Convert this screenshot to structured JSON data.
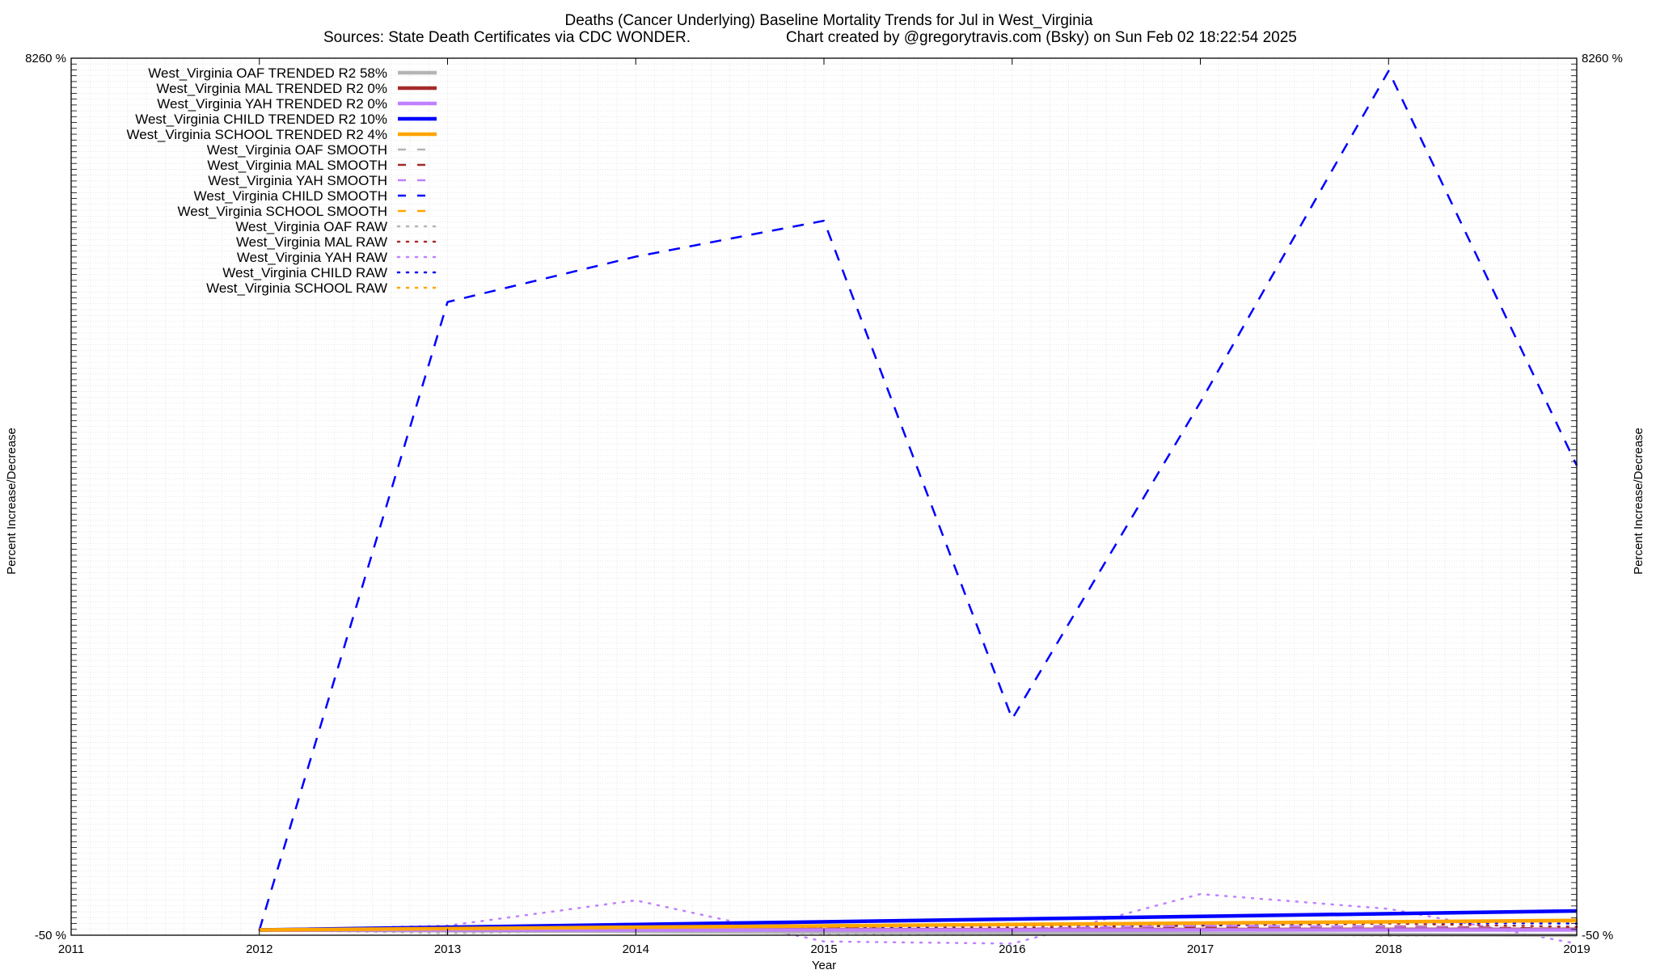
{
  "chart_data": {
    "type": "line",
    "title": "Deaths (Cancer Underlying)  Baseline Mortality Trends for Jul in West_Virginia",
    "subtitle_left": "Sources: State Death Certificates via CDC WONDER.",
    "subtitle_right": "Chart created by @gregorytravis.com (Bsky) on Sun Feb 02 18:22:54 2025",
    "xlabel": "Year",
    "ylabel": "Percent Increase/Decrease",
    "xlim": [
      2011,
      2019
    ],
    "ylim": [
      -50,
      8260
    ],
    "x_ticks": [
      2011,
      2012,
      2013,
      2014,
      2015,
      2016,
      2017,
      2018,
      2019
    ],
    "x_tick_labels": [
      "2011",
      "2012",
      "2013",
      "2014",
      "2015",
      "2016",
      "2017",
      "2018",
      "2019"
    ],
    "y_tick_labels_left": [
      "8260 %",
      "-50 %"
    ],
    "y_tick_labels_right": [
      "8260 %",
      "-50 %"
    ],
    "grid": true,
    "legend_position": "top-left",
    "series": [
      {
        "name": "West_Virginia OAF TRENDED R2  58%",
        "style": "trend",
        "color": "#b4b4b4",
        "x": [
          2012,
          2019
        ],
        "y": [
          0,
          -50
        ]
      },
      {
        "name": "West_Virginia MAL TRENDED R2   0%",
        "style": "trend",
        "color": "#a52a2a",
        "x": [
          2012,
          2019
        ],
        "y": [
          0,
          5
        ]
      },
      {
        "name": "West_Virginia YAH TRENDED R2   0%",
        "style": "trend",
        "color": "#c080ff",
        "x": [
          2012,
          2019
        ],
        "y": [
          0,
          0
        ]
      },
      {
        "name": "West_Virginia CHILD TRENDED R2  10%",
        "style": "trend",
        "color": "#0000ff",
        "x": [
          2012,
          2019
        ],
        "y": [
          0,
          180
        ]
      },
      {
        "name": "West_Virginia SCHOOL TRENDED R2   4%",
        "style": "trend",
        "color": "#ffa500",
        "x": [
          2012,
          2019
        ],
        "y": [
          0,
          90
        ]
      },
      {
        "name": "West_Virginia OAF SMOOTH",
        "style": "smooth",
        "color": "#b4b4b4",
        "x": [
          2012,
          2013,
          2014,
          2015,
          2016,
          2017,
          2018,
          2019
        ],
        "y": [
          0,
          -10,
          -20,
          -25,
          -30,
          -40,
          -45,
          -50
        ]
      },
      {
        "name": "West_Virginia MAL SMOOTH",
        "style": "smooth",
        "color": "#a52a2a",
        "x": [
          2012,
          2013,
          2014,
          2015,
          2016,
          2017,
          2018,
          2019
        ],
        "y": [
          0,
          10,
          25,
          15,
          5,
          30,
          35,
          10
        ]
      },
      {
        "name": "West_Virginia YAH SMOOTH",
        "style": "smooth",
        "color": "#c080ff",
        "x": [
          2012,
          2013,
          2014,
          2015,
          2016,
          2017,
          2018,
          2019
        ],
        "y": [
          0,
          20,
          60,
          -30,
          10,
          40,
          30,
          5
        ]
      },
      {
        "name": "West_Virginia CHILD SMOOTH",
        "style": "smooth",
        "color": "#0000ff",
        "x": [
          2012,
          2013,
          2014,
          2015,
          2016,
          2017,
          2018,
          2019
        ],
        "y": [
          0,
          5950,
          6380,
          6720,
          2000,
          5000,
          8140,
          4400
        ]
      },
      {
        "name": "West_Virginia SCHOOL SMOOTH",
        "style": "smooth",
        "color": "#ffa500",
        "x": [
          2012,
          2013,
          2014,
          2015,
          2016,
          2017,
          2018,
          2019
        ],
        "y": [
          0,
          15,
          30,
          40,
          50,
          60,
          70,
          80
        ]
      },
      {
        "name": "West_Virginia OAF RAW",
        "style": "raw",
        "color": "#b4b4b4",
        "x": [
          2012,
          2013,
          2014,
          2015,
          2016,
          2017,
          2018,
          2019
        ],
        "y": [
          0,
          -30,
          -10,
          -35,
          -40,
          -30,
          -55,
          -50
        ]
      },
      {
        "name": "West_Virginia MAL RAW",
        "style": "raw",
        "color": "#a52a2a",
        "x": [
          2012,
          2013,
          2014,
          2015,
          2016,
          2017,
          2018,
          2019
        ],
        "y": [
          0,
          20,
          30,
          10,
          20,
          40,
          60,
          30
        ]
      },
      {
        "name": "West_Virginia YAH RAW",
        "style": "raw",
        "color": "#c080ff",
        "x": [
          2012,
          2013,
          2014,
          2015,
          2016,
          2017,
          2018,
          2019
        ],
        "y": [
          0,
          40,
          280,
          -110,
          -130,
          340,
          200,
          -130
        ]
      },
      {
        "name": "West_Virginia CHILD RAW",
        "style": "raw",
        "color": "#0000ff",
        "x": [
          2012,
          2013,
          2014,
          2015,
          2016,
          2017,
          2018,
          2019
        ],
        "y": [
          0,
          15,
          25,
          20,
          40,
          50,
          70,
          60
        ]
      },
      {
        "name": "West_Virginia SCHOOL RAW",
        "style": "raw",
        "color": "#ffa500",
        "x": [
          2012,
          2013,
          2014,
          2015,
          2016,
          2017,
          2018,
          2019
        ],
        "y": [
          0,
          20,
          35,
          40,
          60,
          70,
          80,
          90
        ]
      }
    ]
  }
}
